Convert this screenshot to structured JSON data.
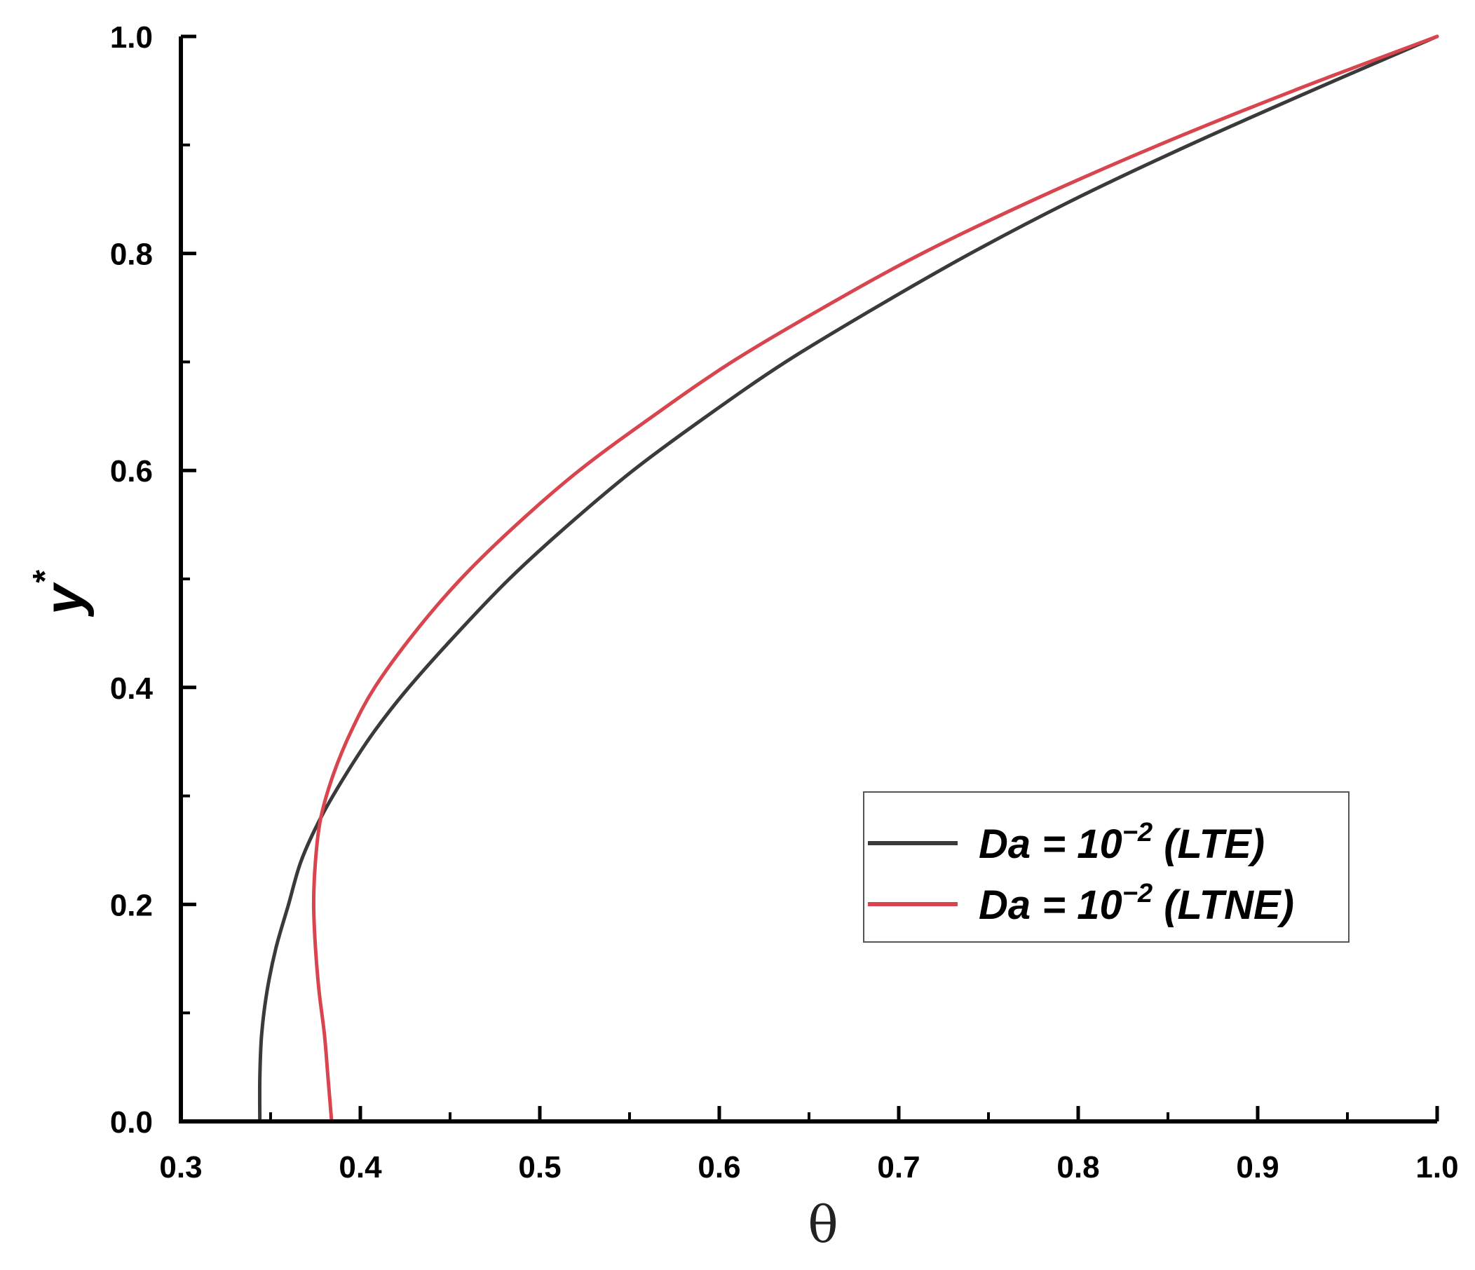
{
  "chart_data": {
    "type": "line",
    "xlabel": "θ",
    "ylabel": "y",
    "ylabel_superscript": "*",
    "xlim": [
      0.3,
      1.0
    ],
    "ylim": [
      0.0,
      1.0
    ],
    "x_ticks": [
      0.3,
      0.4,
      0.5,
      0.6,
      0.7,
      0.8,
      0.9,
      1.0
    ],
    "x_tick_labels": [
      "0.3",
      "0.4",
      "0.5",
      "0.6",
      "0.7",
      "0.8",
      "0.9",
      "1.0"
    ],
    "y_ticks": [
      0.0,
      0.2,
      0.4,
      0.6,
      0.8,
      1.0
    ],
    "y_tick_labels": [
      "0.0",
      "0.2",
      "0.4",
      "0.6",
      "0.8",
      "1.0"
    ],
    "grid": false,
    "legend_position": "lower-right",
    "series": [
      {
        "name_prefix": "Da = 10",
        "name_sup": "−2",
        "name_suffix": " (LTE)",
        "color": "#3a3a3a",
        "points": [
          [
            0.344,
            0.0
          ],
          [
            0.344,
            0.04
          ],
          [
            0.345,
            0.08
          ],
          [
            0.348,
            0.12
          ],
          [
            0.353,
            0.16
          ],
          [
            0.36,
            0.2
          ],
          [
            0.367,
            0.24
          ],
          [
            0.378,
            0.28
          ],
          [
            0.392,
            0.32
          ],
          [
            0.408,
            0.36
          ],
          [
            0.427,
            0.4
          ],
          [
            0.454,
            0.45
          ],
          [
            0.483,
            0.5
          ],
          [
            0.516,
            0.55
          ],
          [
            0.552,
            0.6
          ],
          [
            0.593,
            0.65
          ],
          [
            0.637,
            0.7
          ],
          [
            0.687,
            0.75
          ],
          [
            0.74,
            0.8
          ],
          [
            0.798,
            0.85
          ],
          [
            0.862,
            0.9
          ],
          [
            0.93,
            0.95
          ],
          [
            1.0,
            1.0
          ]
        ]
      },
      {
        "name_prefix": "Da = 10",
        "name_sup": "−2",
        "name_suffix": " (LTNE)",
        "color": "#d9454f",
        "points": [
          [
            0.384,
            0.0
          ],
          [
            0.382,
            0.04
          ],
          [
            0.38,
            0.08
          ],
          [
            0.377,
            0.12
          ],
          [
            0.375,
            0.16
          ],
          [
            0.374,
            0.2
          ],
          [
            0.375,
            0.24
          ],
          [
            0.378,
            0.28
          ],
          [
            0.385,
            0.32
          ],
          [
            0.395,
            0.36
          ],
          [
            0.408,
            0.4
          ],
          [
            0.43,
            0.45
          ],
          [
            0.456,
            0.5
          ],
          [
            0.487,
            0.55
          ],
          [
            0.522,
            0.6
          ],
          [
            0.563,
            0.65
          ],
          [
            0.607,
            0.7
          ],
          [
            0.658,
            0.75
          ],
          [
            0.713,
            0.8
          ],
          [
            0.776,
            0.85
          ],
          [
            0.845,
            0.9
          ],
          [
            0.92,
            0.95
          ],
          [
            1.0,
            1.0
          ]
        ]
      }
    ]
  }
}
